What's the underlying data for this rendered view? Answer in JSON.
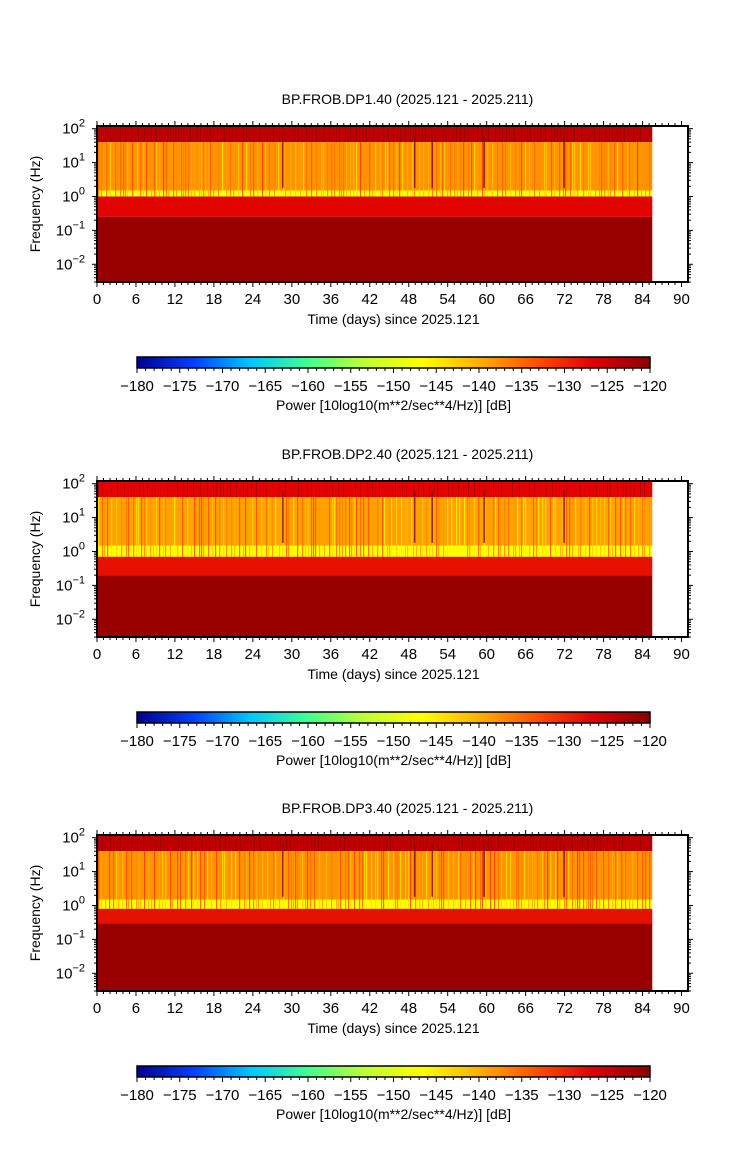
{
  "colorbar": {
    "label": "Power [10log10(m**2/sec**4/Hz)] [dB]",
    "ticks": [
      -180,
      -175,
      -170,
      -165,
      -160,
      -155,
      -150,
      -145,
      -140,
      -135,
      -130,
      -125,
      -120
    ],
    "range": [
      -180,
      -120
    ],
    "colormap": [
      "#00008f",
      "#0040ff",
      "#00c8ff",
      "#40ff90",
      "#c0ff30",
      "#ffff00",
      "#ffb000",
      "#ff5000",
      "#e00000",
      "#8b0000"
    ]
  },
  "chart_data": [
    {
      "type": "heatmap",
      "title": "BP.FROB.DP1.40 (2025.121 - 2025.211)",
      "xlabel": "Time (days) since 2025.121",
      "ylabel": "Frequency (Hz)",
      "xlim": [
        0,
        91
      ],
      "ylim": [
        0.003,
        120
      ],
      "yscale": "log",
      "xticks": [
        0,
        6,
        12,
        18,
        24,
        30,
        36,
        42,
        48,
        54,
        60,
        66,
        72,
        78,
        84,
        90
      ],
      "yticks": [
        {
          "value": 100,
          "base": "10",
          "exp": "2"
        },
        {
          "value": 10,
          "base": "10",
          "exp": "1"
        },
        {
          "value": 1,
          "base": "10",
          "exp": "0"
        },
        {
          "value": 0.1,
          "base": "10",
          "exp": "−1"
        },
        {
          "value": 0.01,
          "base": "10",
          "exp": "−2"
        }
      ],
      "data_end_day": 85.5,
      "bands": [
        {
          "f_low": 40,
          "f_high": 120,
          "power_db": -124
        },
        {
          "f_low": 1.5,
          "f_high": 40,
          "power_db": -138
        },
        {
          "f_low": 1.0,
          "f_high": 1.5,
          "power_db": -148
        },
        {
          "f_low": 0.25,
          "f_high": 1.0,
          "power_db": -127
        },
        {
          "f_low": 0.003,
          "f_high": 0.25,
          "power_db": -121
        }
      ]
    },
    {
      "type": "heatmap",
      "title": "BP.FROB.DP2.40 (2025.121 - 2025.211)",
      "xlabel": "Time (days) since 2025.121",
      "ylabel": "Frequency (Hz)",
      "xlim": [
        0,
        91
      ],
      "ylim": [
        0.003,
        120
      ],
      "yscale": "log",
      "xticks": [
        0,
        6,
        12,
        18,
        24,
        30,
        36,
        42,
        48,
        54,
        60,
        66,
        72,
        78,
        84,
        90
      ],
      "yticks": [
        {
          "value": 100,
          "base": "10",
          "exp": "2"
        },
        {
          "value": 10,
          "base": "10",
          "exp": "1"
        },
        {
          "value": 1,
          "base": "10",
          "exp": "0"
        },
        {
          "value": 0.1,
          "base": "10",
          "exp": "−1"
        },
        {
          "value": 0.01,
          "base": "10",
          "exp": "−2"
        }
      ],
      "data_end_day": 85.5,
      "bands": [
        {
          "f_low": 40,
          "f_high": 120,
          "power_db": -127
        },
        {
          "f_low": 1.5,
          "f_high": 40,
          "power_db": -139
        },
        {
          "f_low": 0.7,
          "f_high": 1.5,
          "power_db": -147
        },
        {
          "f_low": 0.2,
          "f_high": 0.7,
          "power_db": -128
        },
        {
          "f_low": 0.003,
          "f_high": 0.2,
          "power_db": -121
        }
      ]
    },
    {
      "type": "heatmap",
      "title": "BP.FROB.DP3.40 (2025.121 - 2025.211)",
      "xlabel": "Time (days) since 2025.121",
      "ylabel": "Frequency (Hz)",
      "xlim": [
        0,
        91
      ],
      "ylim": [
        0.003,
        120
      ],
      "yscale": "log",
      "xticks": [
        0,
        6,
        12,
        18,
        24,
        30,
        36,
        42,
        48,
        54,
        60,
        66,
        72,
        78,
        84,
        90
      ],
      "yticks": [
        {
          "value": 100,
          "base": "10",
          "exp": "2"
        },
        {
          "value": 10,
          "base": "10",
          "exp": "1"
        },
        {
          "value": 1,
          "base": "10",
          "exp": "0"
        },
        {
          "value": 0.1,
          "base": "10",
          "exp": "−1"
        },
        {
          "value": 0.01,
          "base": "10",
          "exp": "−2"
        }
      ],
      "data_end_day": 85.5,
      "bands": [
        {
          "f_low": 40,
          "f_high": 120,
          "power_db": -124
        },
        {
          "f_low": 1.5,
          "f_high": 40,
          "power_db": -138
        },
        {
          "f_low": 0.8,
          "f_high": 1.5,
          "power_db": -147
        },
        {
          "f_low": 0.3,
          "f_high": 0.8,
          "power_db": -128
        },
        {
          "f_low": 0.003,
          "f_high": 0.3,
          "power_db": -121
        }
      ]
    }
  ]
}
